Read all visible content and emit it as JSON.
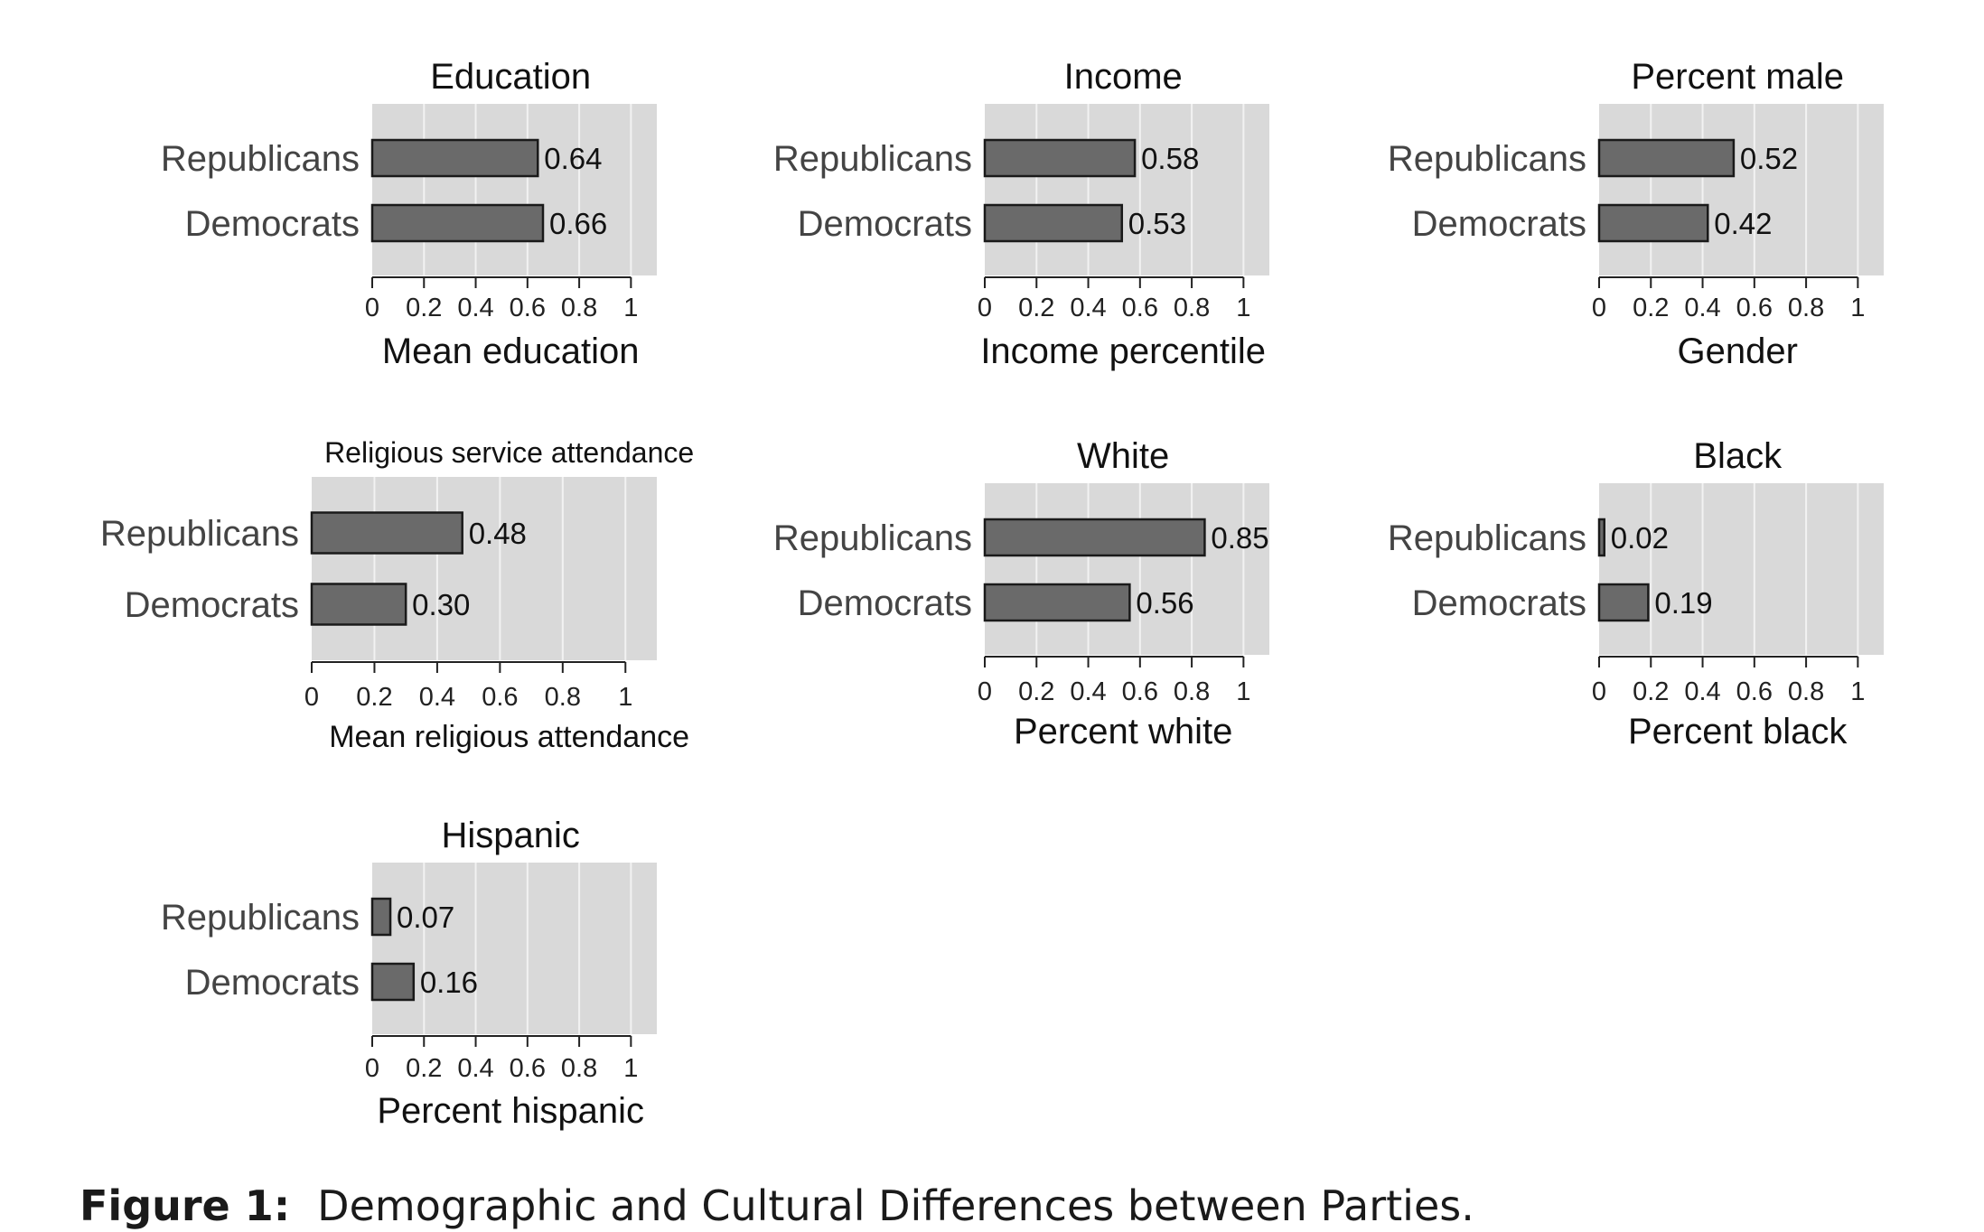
{
  "caption": {
    "label": "Figure 1:",
    "text": "Demographic and Cultural Differences between Parties."
  },
  "colors": {
    "bar_fill": "#6a6a6a",
    "bar_stroke": "#1a1a1a",
    "panel_bg": "#d9d9d9",
    "gridline": "#f2f2f2"
  },
  "chart_data": [
    {
      "type": "bar",
      "orientation": "horizontal",
      "title": "Education",
      "xlabel": "Mean education",
      "categories": [
        "Republicans",
        "Democrats"
      ],
      "values": [
        0.64,
        0.66
      ],
      "value_labels": [
        "0.64",
        "0.66"
      ],
      "xlim": [
        0,
        1.1
      ],
      "xticks": [
        0,
        0.2,
        0.4,
        0.6,
        0.8,
        1
      ],
      "xtick_labels": [
        "0",
        "0.2",
        "0.4",
        "0.6",
        "0.8",
        "1"
      ],
      "grid": true
    },
    {
      "type": "bar",
      "orientation": "horizontal",
      "title": "Income",
      "xlabel": "Income percentile",
      "categories": [
        "Republicans",
        "Democrats"
      ],
      "values": [
        0.58,
        0.53
      ],
      "value_labels": [
        "0.58",
        "0.53"
      ],
      "xlim": [
        0,
        1.1
      ],
      "xticks": [
        0,
        0.2,
        0.4,
        0.6,
        0.8,
        1
      ],
      "xtick_labels": [
        "0",
        "0.2",
        "0.4",
        "0.6",
        "0.8",
        "1"
      ],
      "grid": true
    },
    {
      "type": "bar",
      "orientation": "horizontal",
      "title": "Percent male",
      "xlabel": "Gender",
      "categories": [
        "Republicans",
        "Democrats"
      ],
      "values": [
        0.52,
        0.42
      ],
      "value_labels": [
        "0.52",
        "0.42"
      ],
      "xlim": [
        0,
        1.1
      ],
      "xticks": [
        0,
        0.2,
        0.4,
        0.6,
        0.8,
        1
      ],
      "xtick_labels": [
        "0",
        "0.2",
        "0.4",
        "0.6",
        "0.8",
        "1"
      ],
      "grid": true
    },
    {
      "type": "bar",
      "orientation": "horizontal",
      "title": "Religious service attendance",
      "xlabel": "Mean religious attendance",
      "categories": [
        "Republicans",
        "Democrats"
      ],
      "values": [
        0.48,
        0.3
      ],
      "value_labels": [
        "0.48",
        "0.30"
      ],
      "xlim": [
        0,
        1.1
      ],
      "xticks": [
        0,
        0.2,
        0.4,
        0.6,
        0.8,
        1
      ],
      "xtick_labels": [
        "0",
        "0.2",
        "0.4",
        "0.6",
        "0.8",
        "1"
      ],
      "grid": true
    },
    {
      "type": "bar",
      "orientation": "horizontal",
      "title": "White",
      "xlabel": "Percent white",
      "categories": [
        "Republicans",
        "Democrats"
      ],
      "values": [
        0.85,
        0.56
      ],
      "value_labels": [
        "0.85",
        "0.56"
      ],
      "xlim": [
        0,
        1.1
      ],
      "xticks": [
        0,
        0.2,
        0.4,
        0.6,
        0.8,
        1
      ],
      "xtick_labels": [
        "0",
        "0.2",
        "0.4",
        "0.6",
        "0.8",
        "1"
      ],
      "grid": true
    },
    {
      "type": "bar",
      "orientation": "horizontal",
      "title": "Black",
      "xlabel": "Percent black",
      "categories": [
        "Republicans",
        "Democrats"
      ],
      "values": [
        0.02,
        0.19
      ],
      "value_labels": [
        "0.02",
        "0.19"
      ],
      "xlim": [
        0,
        1.1
      ],
      "xticks": [
        0,
        0.2,
        0.4,
        0.6,
        0.8,
        1
      ],
      "xtick_labels": [
        "0",
        "0.2",
        "0.4",
        "0.6",
        "0.8",
        "1"
      ],
      "grid": true
    },
    {
      "type": "bar",
      "orientation": "horizontal",
      "title": "Hispanic",
      "xlabel": "Percent hispanic",
      "categories": [
        "Republicans",
        "Democrats"
      ],
      "values": [
        0.07,
        0.16
      ],
      "value_labels": [
        "0.07",
        "0.16"
      ],
      "xlim": [
        0,
        1.1
      ],
      "xticks": [
        0,
        0.2,
        0.4,
        0.6,
        0.8,
        1
      ],
      "xtick_labels": [
        "0",
        "0.2",
        "0.4",
        "0.6",
        "0.8",
        "1"
      ],
      "grid": true
    }
  ]
}
